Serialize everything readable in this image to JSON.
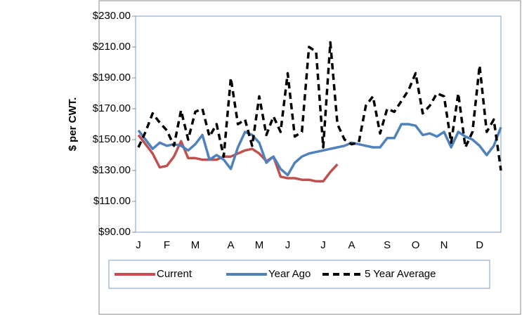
{
  "chart_data": {
    "type": "line",
    "y_label": "$ per CWT.",
    "categories": [
      "J",
      null,
      null,
      null,
      "F",
      null,
      null,
      null,
      "M",
      null,
      null,
      null,
      null,
      "A",
      null,
      null,
      null,
      "M",
      null,
      null,
      null,
      "J",
      null,
      null,
      null,
      null,
      "J",
      null,
      null,
      null,
      "A",
      null,
      null,
      null,
      null,
      "S",
      null,
      null,
      null,
      "O",
      null,
      null,
      null,
      "N",
      null,
      null,
      null,
      null,
      "D",
      null,
      null,
      null
    ],
    "series": [
      {
        "name": "Current",
        "color": "#c0504d",
        "dashed": false,
        "values": [
          153,
          147,
          141,
          132,
          133,
          139,
          149,
          138,
          138,
          137,
          137,
          137,
          139,
          139,
          141,
          143,
          144,
          141,
          136,
          139,
          126,
          125,
          125,
          124,
          124,
          123,
          123,
          129,
          134,
          null,
          null,
          null,
          null,
          null,
          null,
          null,
          null,
          null,
          null,
          null,
          null,
          null,
          null,
          null,
          null,
          null,
          null,
          null,
          null,
          null,
          null,
          null
        ]
      },
      {
        "name": "Year Ago",
        "color": "#4f81bd",
        "dashed": false,
        "values": [
          156,
          150,
          144,
          148,
          146,
          147,
          146,
          143,
          147,
          153,
          137,
          140,
          137,
          131,
          145,
          155,
          153,
          148,
          135,
          139,
          131,
          127,
          135,
          139,
          141,
          142,
          143,
          144,
          145,
          146,
          148,
          147,
          146,
          145,
          145,
          151,
          151,
          160,
          160,
          159,
          153,
          154,
          152,
          155,
          145,
          155,
          152,
          150,
          146,
          140,
          146,
          158
        ]
      },
      {
        "name": "5 Year Average",
        "color": "#000000",
        "dashed": true,
        "values": [
          145,
          155,
          167,
          161,
          156,
          146,
          169,
          150,
          168,
          170,
          152,
          160,
          139,
          190,
          160,
          163,
          146,
          178,
          153,
          165,
          155,
          193,
          152,
          155,
          210,
          207,
          145,
          213,
          160,
          150,
          147,
          148,
          172,
          178,
          154,
          170,
          168,
          175,
          182,
          193,
          167,
          172,
          180,
          178,
          148,
          180,
          145,
          155,
          198,
          155,
          163,
          130
        ]
      }
    ],
    "ylim": [
      90,
      230
    ],
    "yticks": [
      {
        "value": 90,
        "label": "$90.00"
      },
      {
        "value": 110,
        "label": "$110.00"
      },
      {
        "value": 130,
        "label": "$130.00"
      },
      {
        "value": 150,
        "label": "$150.00"
      },
      {
        "value": 170,
        "label": "$170.00"
      },
      {
        "value": 190,
        "label": "$190.00"
      },
      {
        "value": 210,
        "label": "$210.00"
      },
      {
        "value": 230,
        "label": "$230.00"
      }
    ],
    "legend": "bottom"
  }
}
